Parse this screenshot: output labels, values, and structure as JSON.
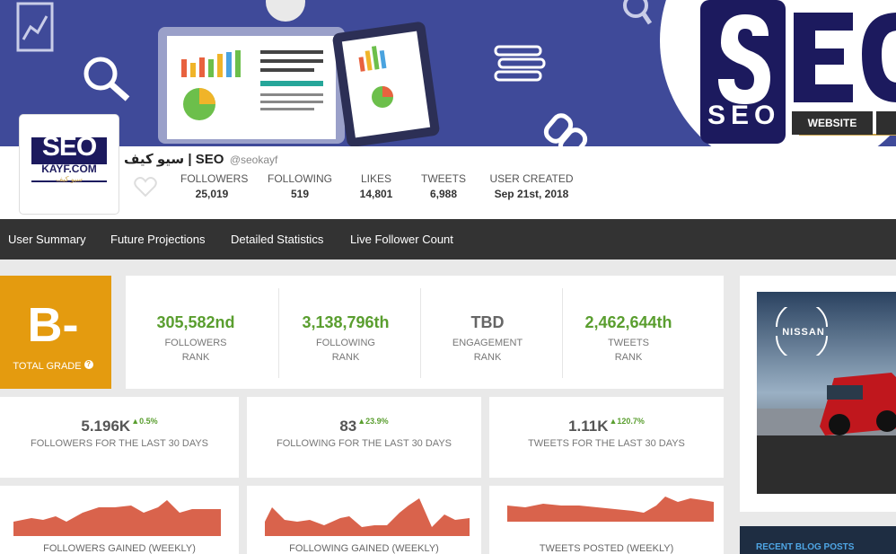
{
  "banner": {
    "logo_letters": "SE",
    "logo_sub": "SEO",
    "website_label": "WEBSITE"
  },
  "avatar": {
    "line1": "SEO",
    "line2": "KAYF.COM",
    "line3": "سيو كيف"
  },
  "profile": {
    "name": "سيو كيف | SEO",
    "handle": "@seokayf",
    "stats": [
      {
        "label": "FOLLOWERS",
        "value": "25,019"
      },
      {
        "label": "FOLLOWING",
        "value": "519"
      },
      {
        "label": "LIKES",
        "value": "14,801"
      },
      {
        "label": "TWEETS",
        "value": "6,988"
      },
      {
        "label": "USER CREATED",
        "value": "Sep 21st, 2018"
      }
    ]
  },
  "nav": {
    "items": [
      "User Summary",
      "Future Projections",
      "Detailed Statistics",
      "Live Follower Count"
    ]
  },
  "grade": {
    "letter": "B-",
    "label": "TOTAL GRADE",
    "help": "?"
  },
  "ranks": [
    {
      "value": "305,582nd",
      "label1": "FOLLOWERS",
      "label2": "RANK"
    },
    {
      "value": "3,138,796th",
      "label1": "FOLLOWING",
      "label2": "RANK"
    },
    {
      "value": "TBD",
      "label1": "ENGAGEMENT",
      "label2": "RANK"
    },
    {
      "value": "2,462,644th",
      "label1": "TWEETS",
      "label2": "RANK"
    }
  ],
  "kpis": [
    {
      "value": "5.196K",
      "change": "▲0.5%",
      "label": "FOLLOWERS FOR THE LAST 30 DAYS"
    },
    {
      "value": "83",
      "change": "▲23.9%",
      "label": "FOLLOWING FOR THE LAST 30 DAYS"
    },
    {
      "value": "1.11K",
      "change": "▲120.7%",
      "label": "TWEETS FOR THE LAST 30 DAYS"
    }
  ],
  "sparks": [
    {
      "label": "FOLLOWERS GAINED (WEEKLY)"
    },
    {
      "label": "FOLLOWING GAINED (WEEKLY)"
    },
    {
      "label": "TWEETS POSTED (WEEKLY)"
    }
  ],
  "ad": {
    "brand": "NISSAN"
  },
  "blog": {
    "title": "RECENT BLOG POSTS"
  },
  "colors": {
    "banner": "#3f4a99",
    "grade": "#e49b0f",
    "rank_green": "#5a9e2f",
    "nav": "#333333",
    "spark": "#d9634c"
  }
}
